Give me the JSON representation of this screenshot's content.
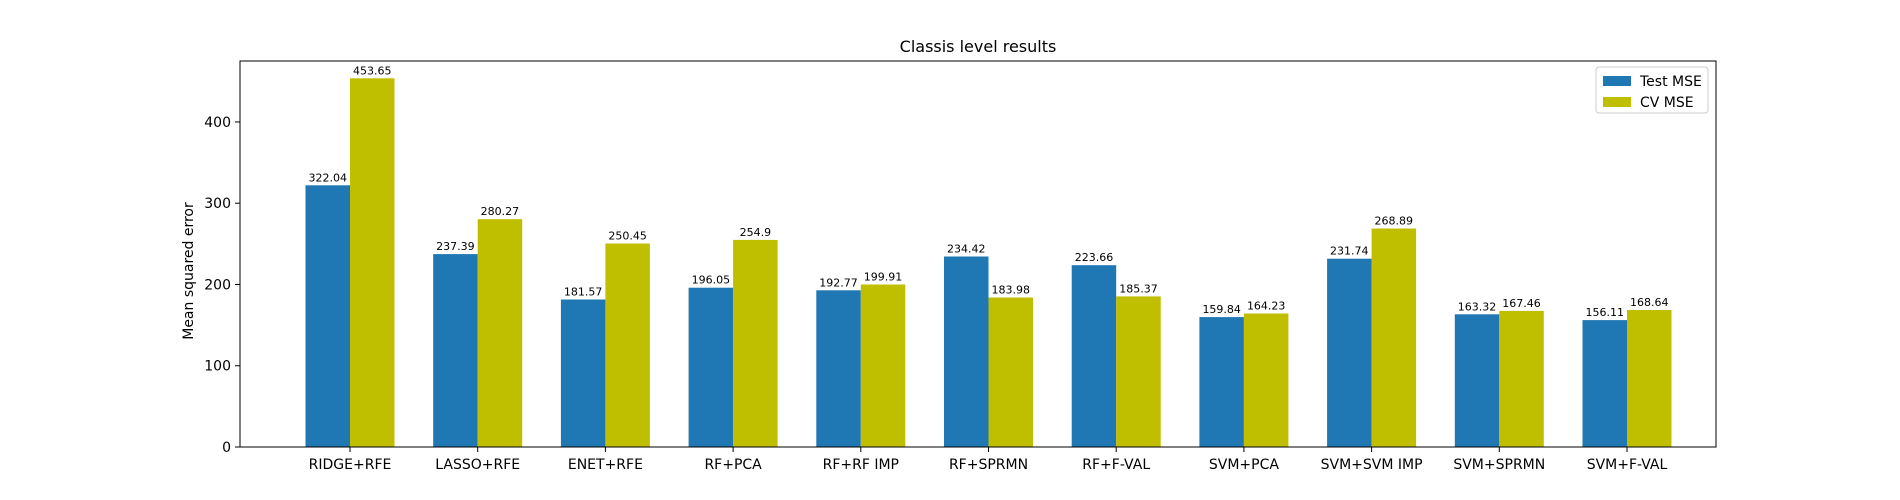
{
  "chart_data": {
    "type": "bar",
    "title": "Classis level results",
    "xlabel": "",
    "ylabel": "Mean squared error",
    "ylim": [
      0,
      475
    ],
    "yticks": [
      0,
      100,
      200,
      300,
      400
    ],
    "grid": false,
    "legend_position": "top-right",
    "categories": [
      "RIDGE+RFE",
      "LASSO+RFE",
      "ENET+RFE",
      "RF+PCA",
      "RF+RF IMP",
      "RF+SPRMN",
      "RF+F-VAL",
      "SVM+PCA",
      "SVM+SVM IMP",
      "SVM+SPRMN",
      "SVM+F-VAL"
    ],
    "series": [
      {
        "name": "Test MSE",
        "color": "#1f77b4",
        "values": [
          322.04,
          237.39,
          181.57,
          196.05,
          192.77,
          234.42,
          223.66,
          159.84,
          231.74,
          163.32,
          156.11
        ],
        "labels": [
          "322.04",
          "237.39",
          "181.57",
          "196.05",
          "192.77",
          "234.42",
          "223.66",
          "159.84",
          "231.74",
          "163.32",
          "156.11"
        ]
      },
      {
        "name": "CV MSE",
        "color": "#bfbf00",
        "values": [
          453.65,
          280.27,
          250.45,
          254.9,
          199.91,
          183.98,
          185.37,
          164.23,
          268.89,
          167.46,
          168.64
        ],
        "labels": [
          "453.65",
          "280.27",
          "250.45",
          "254.9",
          "199.91",
          "183.98",
          "185.37",
          "164.23",
          "268.89",
          "167.46",
          "168.64"
        ]
      }
    ]
  }
}
